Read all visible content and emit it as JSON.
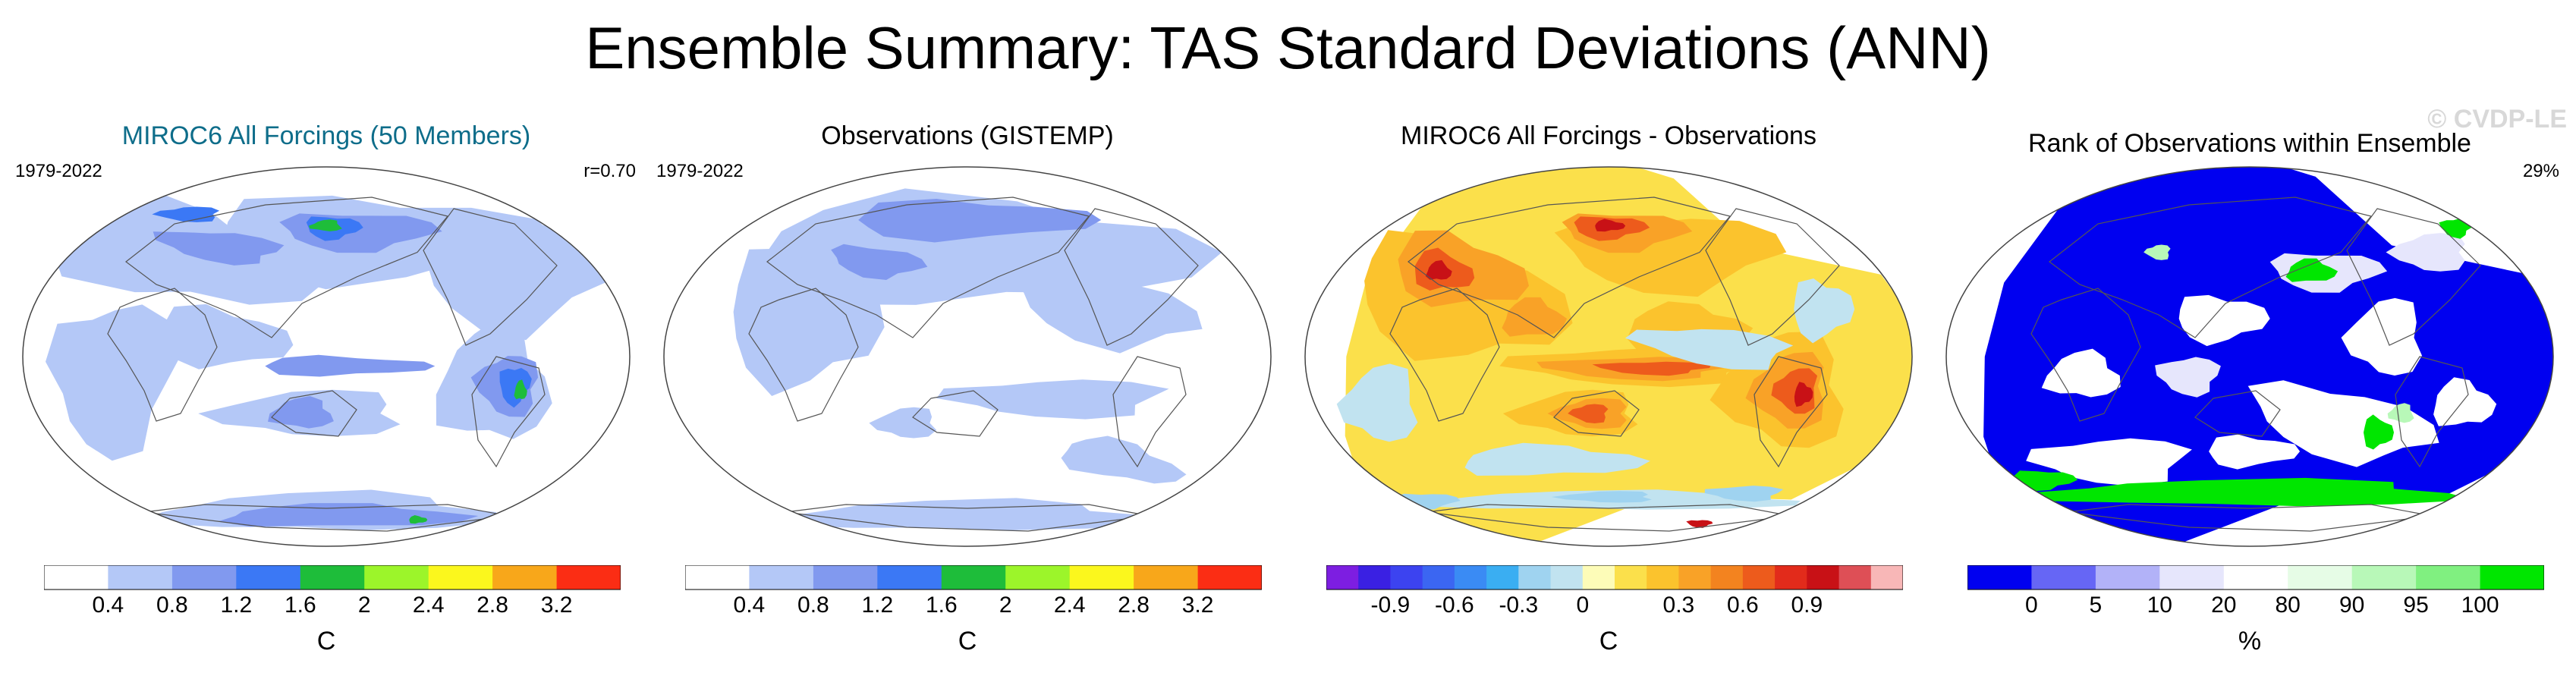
{
  "title": "Ensemble Summary: TAS Standard Deviations (ANN)",
  "watermark": "© CVDP-LE",
  "colors": {
    "sd_scale": [
      "#ffffff",
      "#b4c8f7",
      "#8199ef",
      "#3b78f5",
      "#1ebd3a",
      "#9cf52a",
      "#fbf71d",
      "#f8a71a",
      "#fb2d14"
    ],
    "diff_scale": [
      "#7d1ee1",
      "#3a20e3",
      "#3c43f0",
      "#3b66f2",
      "#3a8bf4",
      "#3aaef2",
      "#9fd3f0",
      "#c1e3f0",
      "#fdfcb8",
      "#fbe04b",
      "#fbc32d",
      "#f9a227",
      "#f3831f",
      "#ed5b1c",
      "#e22b1b",
      "#c81116",
      "#de4f56",
      "#f8b7b7"
    ],
    "rank_scale": [
      "#0000f0",
      "#6666f5",
      "#b2b2f8",
      "#e6e6fc",
      "#ffffff",
      "#e6fce6",
      "#b8f8b8",
      "#80f080",
      "#00e600"
    ],
    "title_teal": "#0e6d8a"
  },
  "panels": [
    {
      "title": "MIROC6 All Forcings (50 Members)",
      "left_label": "1979-2022",
      "right_label": "r=0.70",
      "unit": "C",
      "map_kind": "sd_model"
    },
    {
      "title": "Observations (GISTEMP)",
      "left_label": "1979-2022",
      "unit": "C",
      "map_kind": "sd_obs"
    },
    {
      "title": "MIROC6 All Forcings - Observations",
      "unit": "C",
      "map_kind": "diff"
    },
    {
      "title": "Rank of Observations within Ensemble",
      "right_label": "29%",
      "unit": "%",
      "map_kind": "rank"
    }
  ],
  "chart_data": [
    {
      "type": "heatmap",
      "title": "MIROC6 All Forcings (50 Members)",
      "period": "1979-2022",
      "pattern_correlation": "r=0.70",
      "colorbar_ticks": [
        "0.4",
        "0.8",
        "1.2",
        "1.6",
        "2",
        "2.4",
        "2.8",
        "3.2"
      ],
      "colorbar_levels": [
        0.4,
        0.8,
        1.2,
        1.6,
        2.0,
        2.4,
        2.8,
        3.2
      ],
      "units": "C"
    },
    {
      "type": "heatmap",
      "title": "Observations (GISTEMP)",
      "period": "1979-2022",
      "colorbar_ticks": [
        "0.4",
        "0.8",
        "1.2",
        "1.6",
        "2",
        "2.4",
        "2.8",
        "3.2"
      ],
      "colorbar_levels": [
        0.4,
        0.8,
        1.2,
        1.6,
        2.0,
        2.4,
        2.8,
        3.2
      ],
      "units": "C"
    },
    {
      "type": "heatmap",
      "title": "MIROC6 All Forcings - Observations",
      "colorbar_ticks": [
        "-0.9",
        "-0.6",
        "-0.3",
        "0",
        "0.3",
        "0.6",
        "0.9"
      ],
      "colorbar_levels": [
        -0.9,
        -0.6,
        -0.3,
        0,
        0.3,
        0.6,
        0.9
      ],
      "units": "C"
    },
    {
      "type": "heatmap",
      "title": "Rank of Observations within Ensemble",
      "summary": "29%",
      "colorbar_ticks": [
        "0",
        "5",
        "10",
        "20",
        "80",
        "90",
        "95",
        "100"
      ],
      "colorbar_levels": [
        0,
        5,
        10,
        20,
        80,
        90,
        95,
        100
      ],
      "units": "%"
    }
  ]
}
